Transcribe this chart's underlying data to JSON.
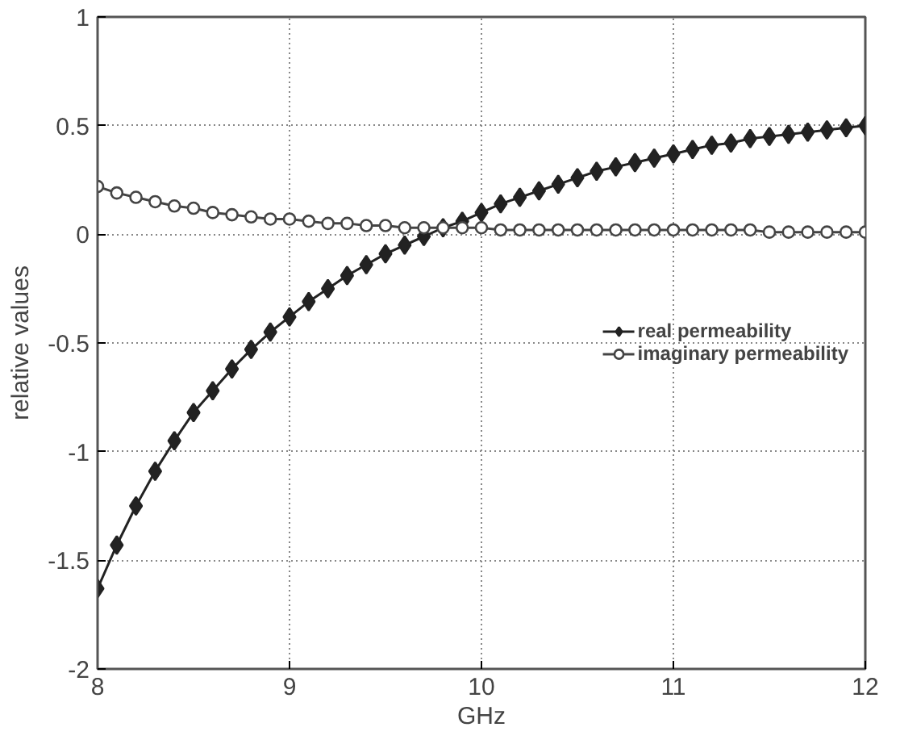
{
  "chart_data": {
    "type": "line",
    "xlabel": "GHz",
    "ylabel": "relative values",
    "x": [
      8,
      8.1,
      8.2,
      8.3,
      8.4,
      8.5,
      8.6,
      8.7,
      8.8,
      8.9,
      9,
      9.1,
      9.2,
      9.3,
      9.4,
      9.5,
      9.6,
      9.7,
      9.8,
      9.9,
      10,
      10.1,
      10.2,
      10.3,
      10.4,
      10.5,
      10.6,
      10.7,
      10.8,
      10.9,
      11,
      11.1,
      11.2,
      11.3,
      11.4,
      11.5,
      11.6,
      11.7,
      11.8,
      11.9,
      12
    ],
    "series": [
      {
        "name": "real permeability",
        "color": "#222222",
        "marker": "diamond",
        "values": [
          -1.63,
          -1.43,
          -1.25,
          -1.09,
          -0.95,
          -0.82,
          -0.72,
          -0.62,
          -0.53,
          -0.45,
          -0.38,
          -0.31,
          -0.25,
          -0.19,
          -0.14,
          -0.09,
          -0.05,
          -0.01,
          0.03,
          0.06,
          0.1,
          0.14,
          0.17,
          0.2,
          0.23,
          0.26,
          0.29,
          0.31,
          0.33,
          0.35,
          0.37,
          0.39,
          0.41,
          0.42,
          0.44,
          0.45,
          0.46,
          0.47,
          0.48,
          0.49,
          0.5
        ]
      },
      {
        "name": "imaginary permeability",
        "color": "#444444",
        "marker": "circle",
        "values": [
          0.22,
          0.19,
          0.17,
          0.15,
          0.13,
          0.12,
          0.1,
          0.09,
          0.08,
          0.07,
          0.07,
          0.06,
          0.05,
          0.05,
          0.04,
          0.04,
          0.03,
          0.03,
          0.03,
          0.03,
          0.03,
          0.02,
          0.02,
          0.02,
          0.02,
          0.02,
          0.02,
          0.02,
          0.02,
          0.02,
          0.02,
          0.02,
          0.02,
          0.02,
          0.02,
          0.01,
          0.01,
          0.01,
          0.01,
          0.01,
          0.01
        ]
      }
    ],
    "xlim": [
      8,
      12
    ],
    "xticks": [
      8,
      9,
      10,
      11,
      12
    ],
    "ylim": [
      -2,
      1
    ],
    "yticks": [
      -2,
      -1.5,
      -1,
      -0.5,
      0,
      0.5,
      1
    ],
    "grid": true,
    "legend": "center right",
    "line_style": "solid"
  }
}
